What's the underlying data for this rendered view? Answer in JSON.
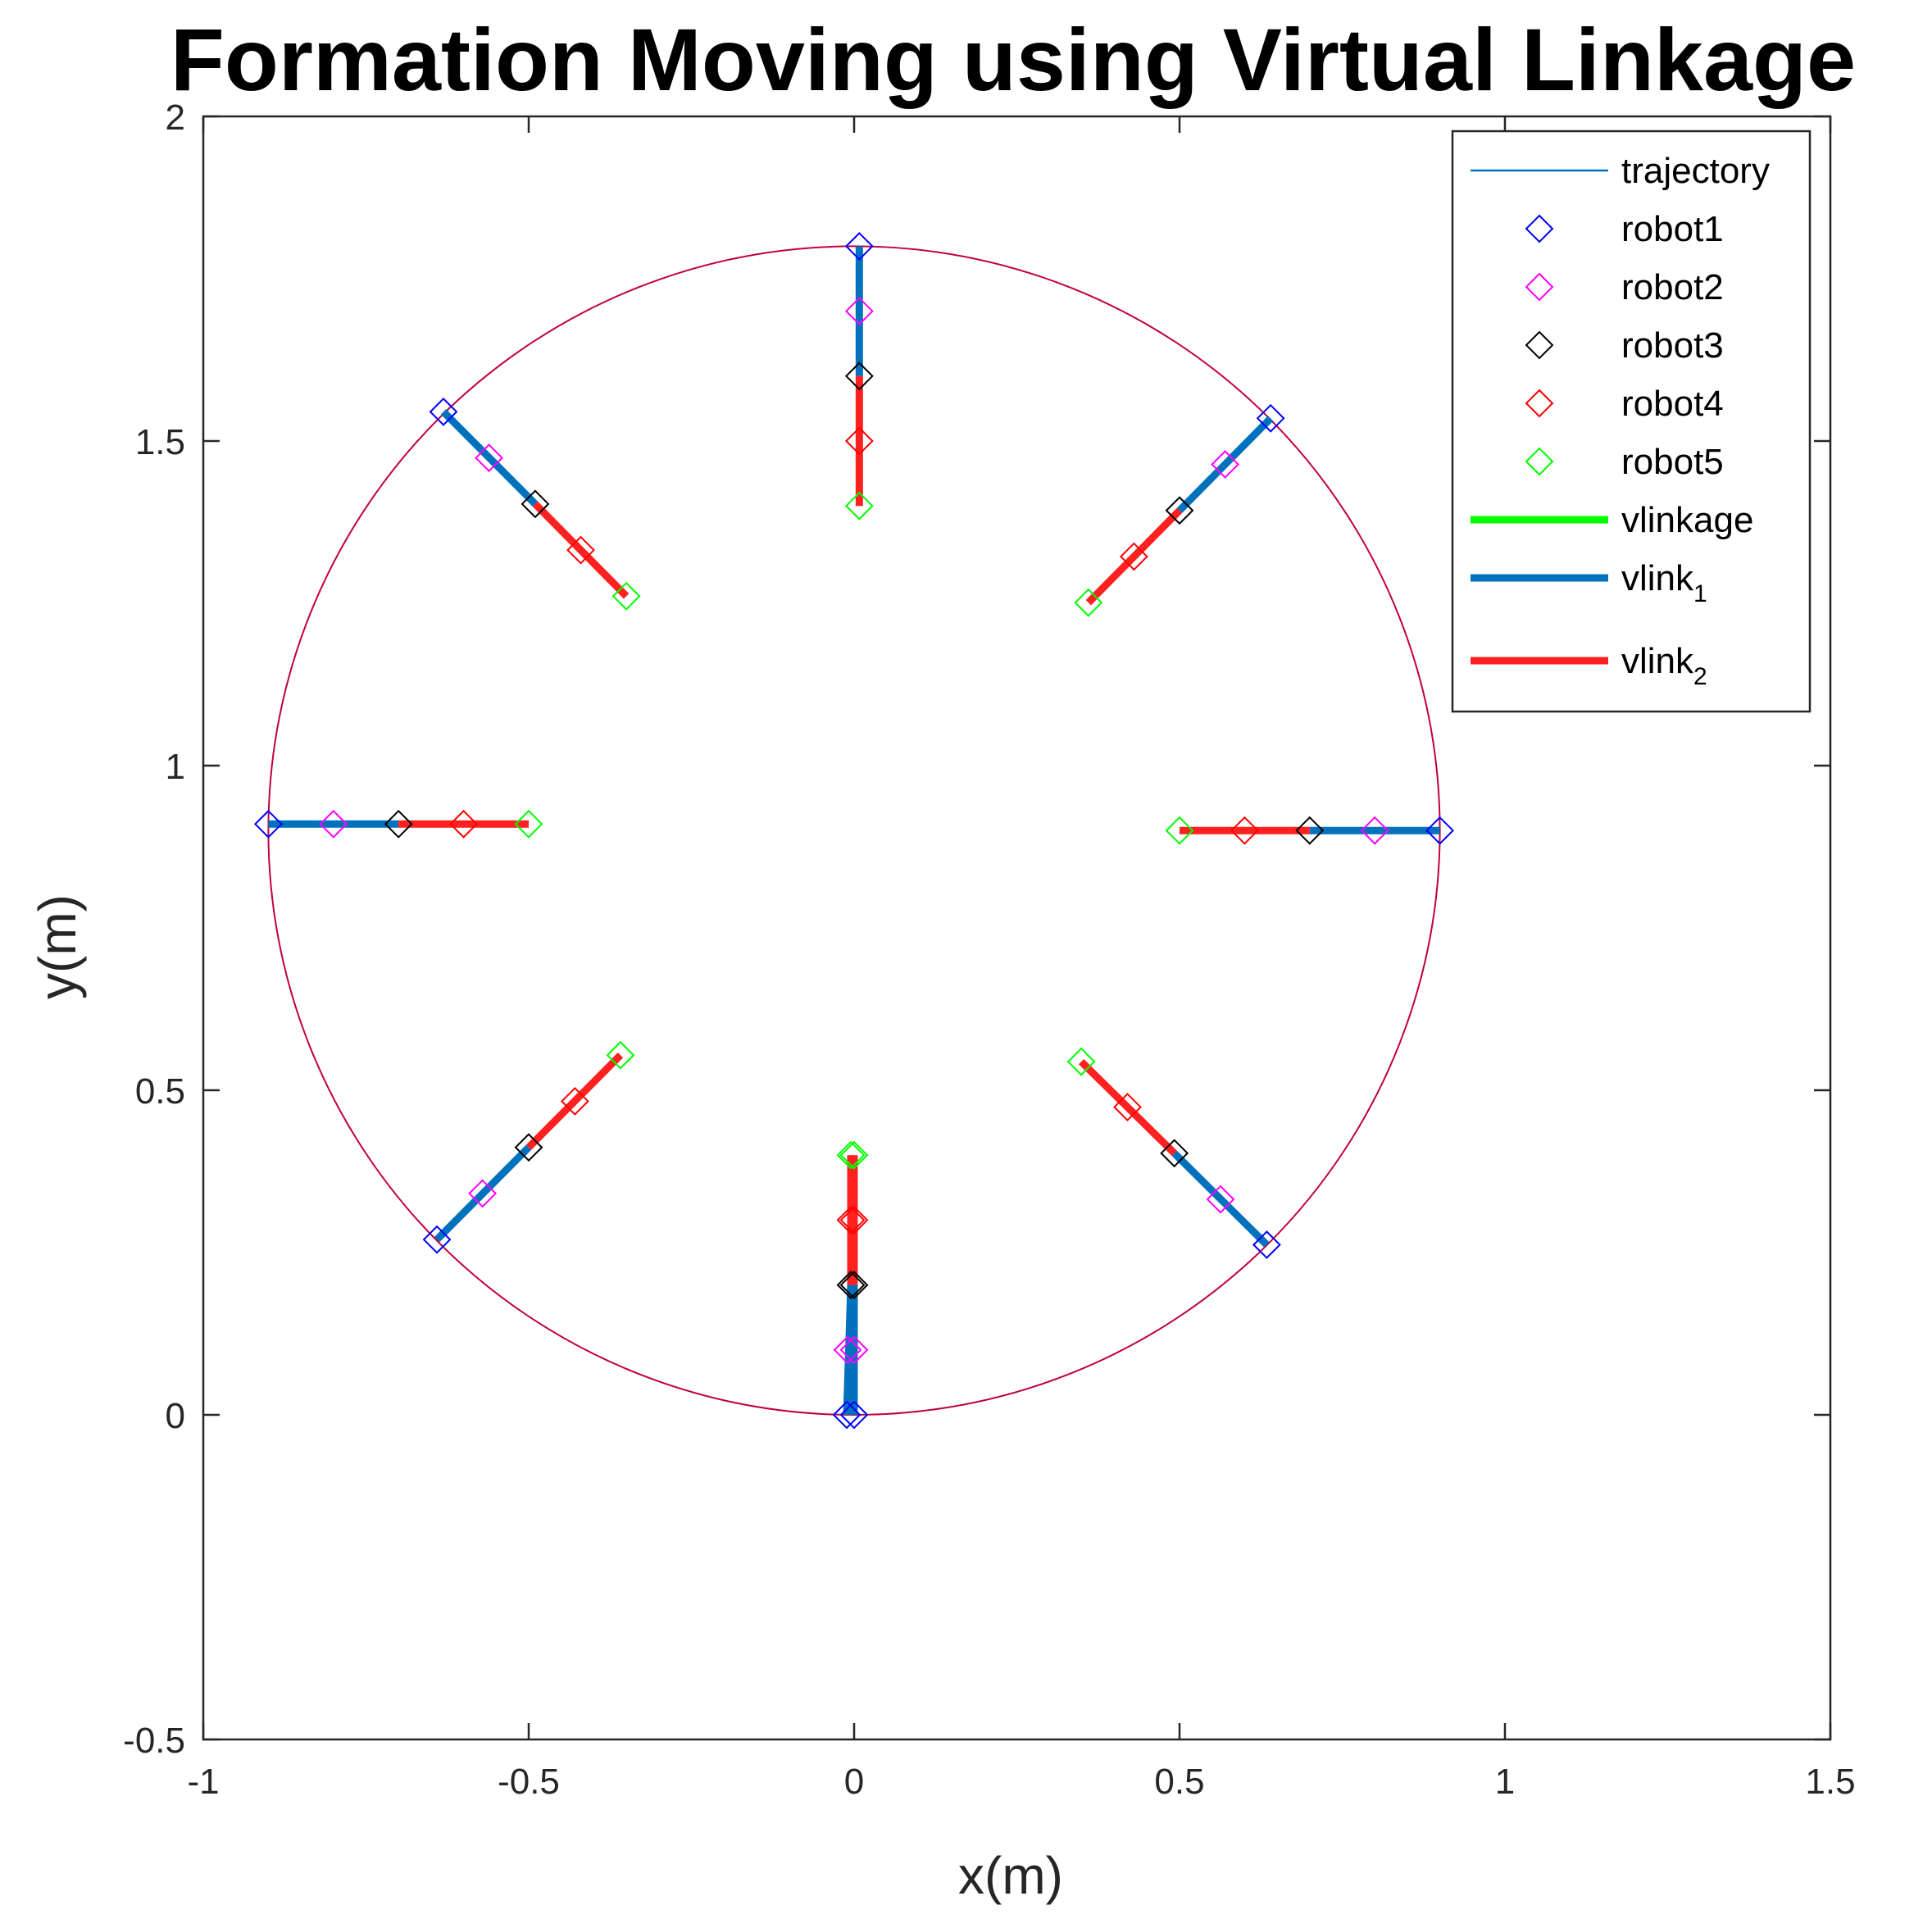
{
  "chart_data": {
    "type": "scatter",
    "title": "Formation Moving using Virtual Linkage",
    "xlabel": "x(m)",
    "ylabel": "y(m)",
    "xlim": [
      -1,
      1.5
    ],
    "ylim": [
      -0.5,
      2
    ],
    "xticks": [
      -1,
      -0.5,
      0,
      0.5,
      1,
      1.5
    ],
    "yticks": [
      -0.5,
      0,
      0.5,
      1,
      1.5,
      2
    ],
    "xtick_labels": [
      "-1",
      "-0.5",
      "0",
      "0.5",
      "1",
      "1.5"
    ],
    "ytick_labels": [
      "-0.5",
      "0",
      "0.5",
      "1",
      "1.5",
      "2"
    ],
    "grid": false,
    "legend_position": "top-right",
    "trajectory": {
      "center": [
        0,
        0.9
      ],
      "radius": 0.9,
      "color": "#C00040"
    },
    "colors": {
      "trajectory_legend": "#0072BD",
      "robot1": "#0000FF",
      "robot2": "#FF00FF",
      "robot3": "#000000",
      "robot4": "#FF0000",
      "robot5": "#00FF00",
      "vlinkage": "#00FF00",
      "vlink1": "#0072BD",
      "vlink2": "#FF2020"
    },
    "legend": [
      {
        "key": "trajectory",
        "label": "trajectory",
        "sub": "",
        "style": "thin-line"
      },
      {
        "key": "robot1",
        "label": "robot1",
        "sub": "",
        "style": "diamond"
      },
      {
        "key": "robot2",
        "label": "robot2",
        "sub": "",
        "style": "diamond"
      },
      {
        "key": "robot3",
        "label": "robot3",
        "sub": "",
        "style": "diamond"
      },
      {
        "key": "robot4",
        "label": "robot4",
        "sub": "",
        "style": "diamond"
      },
      {
        "key": "robot5",
        "label": "robot5",
        "sub": "",
        "style": "diamond"
      },
      {
        "key": "vlinkage",
        "label": "vlinkage",
        "sub": "",
        "style": "thick-line"
      },
      {
        "key": "vlink1",
        "label": "vlink",
        "sub": "1",
        "style": "thick-line"
      },
      {
        "key": "vlink2",
        "label": "vlink",
        "sub": "2",
        "style": "thick-line"
      }
    ],
    "formations": [
      {
        "robots": [
          [
            0.0,
            0.0
          ],
          [
            0.0,
            0.1
          ],
          [
            0.0,
            0.2
          ],
          [
            0.0,
            0.3
          ],
          [
            0.0,
            0.4
          ]
        ]
      },
      {
        "robots": [
          [
            -0.0113,
            0.0
          ],
          [
            -0.01,
            0.1
          ],
          [
            -0.005,
            0.2
          ],
          [
            -0.005,
            0.3
          ],
          [
            -0.005,
            0.4
          ]
        ]
      },
      {
        "robots": [
          [
            0.634,
            0.262
          ],
          [
            0.563,
            0.332
          ],
          [
            0.492,
            0.403
          ],
          [
            0.42,
            0.474
          ],
          [
            0.349,
            0.544
          ]
        ]
      },
      {
        "robots": [
          [
            0.9,
            0.9
          ],
          [
            0.8,
            0.9
          ],
          [
            0.7,
            0.9
          ],
          [
            0.6,
            0.9
          ],
          [
            0.5,
            0.9
          ]
        ]
      },
      {
        "robots": [
          [
            0.64,
            1.535
          ],
          [
            0.57,
            1.464
          ],
          [
            0.5,
            1.393
          ],
          [
            0.43,
            1.322
          ],
          [
            0.36,
            1.251
          ]
        ]
      },
      {
        "robots": [
          [
            0.008,
            1.8
          ],
          [
            0.008,
            1.7
          ],
          [
            0.008,
            1.6
          ],
          [
            0.008,
            1.5
          ],
          [
            0.008,
            1.4
          ]
        ]
      },
      {
        "robots": [
          [
            -0.631,
            1.545
          ],
          [
            -0.561,
            1.474
          ],
          [
            -0.49,
            1.403
          ],
          [
            -0.42,
            1.332
          ],
          [
            -0.35,
            1.261
          ]
        ]
      },
      {
        "robots": [
          [
            -0.9,
            0.91
          ],
          [
            -0.8,
            0.91
          ],
          [
            -0.7,
            0.91
          ],
          [
            -0.6,
            0.91
          ],
          [
            -0.5,
            0.91
          ]
        ]
      },
      {
        "robots": [
          [
            -0.641,
            0.27
          ],
          [
            -0.571,
            0.341
          ],
          [
            -0.5,
            0.412
          ],
          [
            -0.429,
            0.483
          ],
          [
            -0.359,
            0.554
          ]
        ]
      }
    ]
  }
}
